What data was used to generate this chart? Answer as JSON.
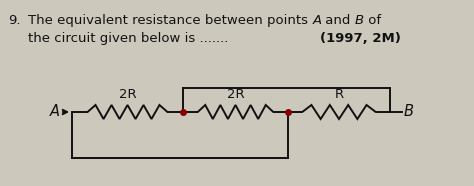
{
  "title_number": "9.",
  "line1_plain1": "The equivalent resistance between points ",
  "line1_italic_A": "A",
  "line1_plain2": " and ",
  "line1_italic_B": "B",
  "line1_plain3": " of",
  "line2_text": "the circuit given below is .......",
  "year_text": "(1997, 2M)",
  "label_A": "A",
  "label_B": "B",
  "label_2R_1": "2R",
  "label_2R_2": "2R",
  "label_R": "R",
  "bg_color": "#ccc8bc",
  "text_color": "#111111",
  "circuit_color": "#111111",
  "dot_color": "#8b0000",
  "font_size_title": 9.5,
  "font_size_circuit": 9.5,
  "fig_w": 4.74,
  "fig_h": 1.86,
  "dpi": 100
}
